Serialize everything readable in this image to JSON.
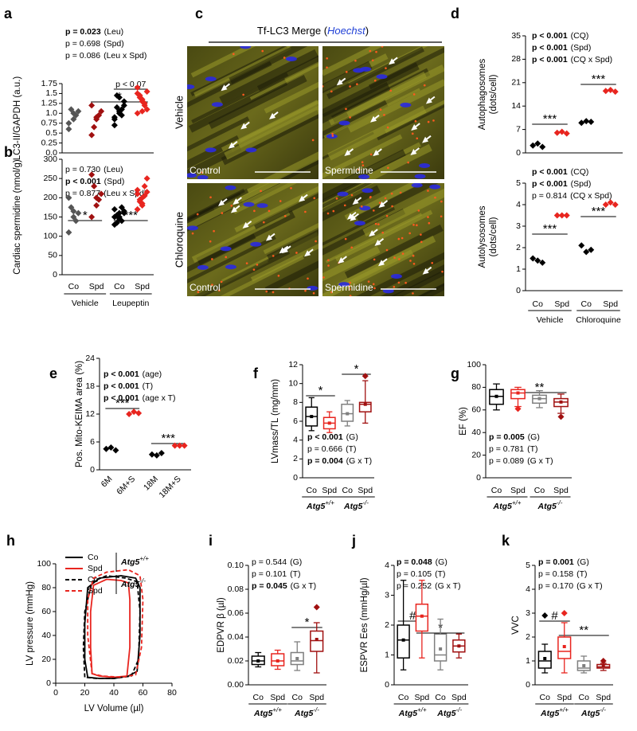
{
  "chart_data": [
    {
      "type": "dot",
      "letter": "a",
      "ylabel": [
        "LC3-II/GAPDH (a.u.)"
      ],
      "ylim": [
        0,
        1.75
      ],
      "yticks": [
        {
          "value": 0,
          "label": "0.0"
        },
        0.25,
        0.5,
        0.75,
        {
          "value": 1,
          "label": "1.0"
        },
        1.25,
        1.5,
        1.75
      ],
      "colors": [
        "#555555",
        "#a01010",
        "#000000",
        "#e8251f"
      ],
      "values": [
        [
          0.75,
          1.0,
          1.05,
          1.1,
          0.95,
          0.6,
          0.85
        ],
        [
          0.45,
          0.85,
          1.05,
          0.65,
          0.95,
          1.2,
          0.9
        ],
        [
          0.7,
          1.05,
          1.2,
          1.45,
          1.1,
          0.9,
          1.0,
          1.3,
          1.15,
          0.95,
          0.85,
          1.4
        ],
        [
          1.0,
          1.3,
          1.55,
          1.45,
          1.2,
          1.65,
          1.35,
          1.1,
          1.4,
          1.25,
          1.5,
          1.05
        ]
      ],
      "stats": [
        {
          "p": "p = 0.023",
          "term": "(Leu)",
          "bold": true
        },
        {
          "p": "p = 0.698",
          "term": "(Spd)",
          "bold": false
        },
        {
          "p": "p = 0.086",
          "term": "(Leu x Spd)",
          "bold": false
        }
      ],
      "significance": [
        "*",
        "p < 0.07"
      ]
    },
    {
      "type": "dot",
      "letter": "b",
      "ylabel": [
        "Cardiac spermidine (nmol/g)"
      ],
      "ylim": [
        0,
        300
      ],
      "yticks": [
        0,
        50,
        100,
        150,
        200,
        250,
        300
      ],
      "categories": [
        "Co",
        "Spd",
        "Co",
        "Spd"
      ],
      "groups": [
        "Vehicle",
        "Leupeptin"
      ],
      "colors": [
        "#555555",
        "#a01010",
        "#000000",
        "#e8251f"
      ],
      "values": [
        [
          110,
          150,
          160,
          175,
          140,
          200,
          165
        ],
        [
          150,
          180,
          210,
          230,
          195,
          260,
          200
        ],
        [
          130,
          150,
          160,
          155,
          140,
          170,
          145,
          165,
          135,
          175,
          150,
          160
        ],
        [
          170,
          200,
          215,
          190,
          230,
          210,
          185,
          250,
          195,
          205,
          220,
          180
        ]
      ],
      "stats": [
        {
          "p": "p = 0.730",
          "term": "(Leu)",
          "bold": false
        },
        {
          "p": "p < 0.001",
          "term": "(Spd)",
          "bold": true
        },
        {
          "p": "p = 0.877",
          "term": "(Leu x Spd)",
          "bold": false
        }
      ],
      "significance": [
        "*",
        "***"
      ]
    },
    {
      "type": "dot",
      "letter": "d",
      "ylabel": [
        "Autophagosomes",
        "(dots/cell)"
      ],
      "ylim": [
        0,
        35
      ],
      "yticks": [
        0,
        7,
        14,
        21,
        28,
        35
      ],
      "colors": [
        "#000000",
        "#e8251f",
        "#000000",
        "#e8251f"
      ],
      "values": [
        [
          2.2,
          2.8,
          1.8
        ],
        [
          6.0,
          6.3,
          5.8
        ],
        [
          9.0,
          9.5,
          9.3
        ],
        [
          18.5,
          18.8,
          18.3
        ]
      ],
      "stats": [
        {
          "p": "p < 0.001",
          "term": "(CQ)",
          "bold": true
        },
        {
          "p": "p < 0.001",
          "term": "(Spd)",
          "bold": true
        },
        {
          "p": "p < 0.001",
          "term": "(CQ x Spd)",
          "bold": true
        }
      ],
      "significance": [
        "***",
        "***"
      ]
    },
    {
      "type": "dot",
      "ylabel": [
        "Autolysosomes",
        "(dots/cell)"
      ],
      "ylim": [
        0,
        5
      ],
      "yticks": [
        0,
        1,
        2,
        3,
        4,
        5
      ],
      "categories": [
        "Co",
        "Spd",
        "Co",
        "Spd"
      ],
      "groups": [
        "Vehicle",
        "Chloroquine"
      ],
      "colors": [
        "#000000",
        "#e8251f",
        "#000000",
        "#e8251f"
      ],
      "values": [
        [
          1.5,
          1.4,
          1.3
        ],
        [
          3.5,
          3.5,
          3.5
        ],
        [
          2.1,
          1.8,
          1.9
        ],
        [
          4.0,
          4.1,
          4.0
        ]
      ],
      "stats": [
        {
          "p": "p < 0.001",
          "term": "(CQ)",
          "bold": true
        },
        {
          "p": "p < 0.001",
          "term": "(Spd)",
          "bold": true
        },
        {
          "p": "p = 0.814",
          "term": "(CQ x Spd)",
          "bold": false
        }
      ],
      "significance": [
        "***",
        "***"
      ]
    },
    {
      "type": "dot",
      "letter": "e",
      "ylabel": [
        "Pos. Mito-KEIMA area (%)"
      ],
      "ylim": [
        0,
        24
      ],
      "yticks": [
        0,
        6,
        12,
        18,
        24
      ],
      "categories": [
        "6M",
        "6M+S",
        "18M",
        "18M+S"
      ],
      "colors": [
        "#000000",
        "#e8251f",
        "#000000",
        "#e8251f"
      ],
      "values": [
        [
          4.5,
          4.8,
          4.2
        ],
        [
          12.0,
          12.5,
          12.2
        ],
        [
          3.3,
          3.1,
          3.6
        ],
        [
          5.2,
          5.2,
          5.2
        ]
      ],
      "stats": [
        {
          "p": "p < 0.001",
          "term": "(age)",
          "bold": true
        },
        {
          "p": "p < 0.001",
          "term": "(T)",
          "bold": true
        },
        {
          "p": "p < 0.001",
          "term": "(age x T)",
          "bold": true
        }
      ],
      "significance": [
        "***",
        "***"
      ]
    },
    {
      "type": "box",
      "letter": "f",
      "ylabel": [
        "LVmass/TL (mg/mm)"
      ],
      "ylim": [
        0,
        12
      ],
      "yticks": [
        0,
        2,
        4,
        6,
        8,
        10,
        12
      ],
      "categories": [
        "Co",
        "Spd",
        "Co",
        "Spd"
      ],
      "groups": [
        {
          "gene": "Atg5",
          "genotype": "+/+"
        },
        {
          "gene": "Atg5",
          "genotype": "-/-"
        }
      ],
      "colors": [
        "#000000",
        "#e8251f",
        "#7f7f7f",
        "#a01010"
      ],
      "boxes": [
        {
          "min": 5.0,
          "q1": 5.5,
          "median": 6.5,
          "q3": 7.5,
          "max": 8.5,
          "mean": 6.5,
          "outliers": []
        },
        {
          "min": 4.8,
          "q1": 5.2,
          "median": 5.8,
          "q3": 6.4,
          "max": 7.0,
          "mean": 5.8,
          "outliers": []
        },
        {
          "min": 5.5,
          "q1": 6.0,
          "median": 6.8,
          "q3": 7.8,
          "max": 8.2,
          "mean": 6.8,
          "outliers": []
        },
        {
          "min": 5.8,
          "q1": 7.0,
          "median": 7.8,
          "q3": 8.0,
          "max": 10.3,
          "mean": 7.8,
          "outliers": [
            10.8
          ]
        }
      ],
      "stats": [
        {
          "p": "p < 0.001",
          "term": "(G)",
          "bold": true
        },
        {
          "p": "p = 0.666",
          "term": "(T)",
          "bold": false
        },
        {
          "p": "p = 0.004",
          "term": "(G x T)",
          "bold": true
        }
      ],
      "significance": [
        "*",
        "*"
      ]
    },
    {
      "type": "box",
      "letter": "g",
      "ylabel": [
        "EF (%)"
      ],
      "ylim": [
        0,
        100
      ],
      "yticks": [
        0,
        20,
        40,
        60,
        80,
        100
      ],
      "categories": [
        "Co",
        "Spd",
        "Co",
        "Spd"
      ],
      "groups": [
        {
          "gene": "Atg5",
          "genotype": "+/+"
        },
        {
          "gene": "Atg5",
          "genotype": "-/-"
        }
      ],
      "colors": [
        "#000000",
        "#e8251f",
        "#7f7f7f",
        "#a01010"
      ],
      "boxes": [
        {
          "min": 60,
          "q1": 65,
          "median": 72,
          "q3": 78,
          "max": 83,
          "mean": 72,
          "outliers": []
        },
        {
          "min": 63,
          "q1": 70,
          "median": 75,
          "q3": 78,
          "max": 80,
          "mean": 75,
          "outliers": [
            61
          ]
        },
        {
          "min": 62,
          "q1": 66,
          "median": 70,
          "q3": 73,
          "max": 77,
          "mean": 70,
          "outliers": []
        },
        {
          "min": 57,
          "q1": 63,
          "median": 67,
          "q3": 70,
          "max": 74,
          "mean": 67,
          "outliers": [
            54
          ]
        }
      ],
      "stats": [
        {
          "p": "p = 0.005",
          "term": "(G)",
          "bold": true
        },
        {
          "p": "p = 0.781",
          "term": "(T)",
          "bold": false
        },
        {
          "p": "p = 0.089",
          "term": "(G x T)",
          "bold": false
        }
      ],
      "significance": [
        "**"
      ]
    },
    {
      "type": "line",
      "letter": "h",
      "xlabel": "LV Volume (µl)",
      "ylabel": [
        "LV pressure (mmHg)"
      ],
      "xlim": [
        0,
        80
      ],
      "xticks": [
        0,
        20,
        40,
        60,
        80
      ],
      "ylim": [
        0,
        100
      ],
      "yticks": [
        0,
        20,
        40,
        60,
        80,
        100
      ],
      "legend_groups": [
        {
          "gene": "Atg5",
          "genotype": "+/+"
        },
        {
          "gene": "Atg5",
          "genotype": "-/-"
        }
      ],
      "series": [
        {
          "name": "Co",
          "color": "#000000",
          "dashed": false,
          "x": [
            22,
            20,
            20,
            22,
            30,
            45,
            55,
            58,
            58,
            56,
            50,
            40,
            30,
            22
          ],
          "y": [
            5,
            20,
            50,
            80,
            88,
            90,
            88,
            80,
            40,
            10,
            6,
            4,
            4,
            5
          ]
        },
        {
          "name": "Spd",
          "color": "#e8251f",
          "dashed": false,
          "x": [
            25,
            24,
            24,
            26,
            35,
            45,
            50,
            51,
            51,
            49,
            40,
            30,
            25
          ],
          "y": [
            8,
            30,
            60,
            82,
            87,
            86,
            84,
            70,
            30,
            6,
            5,
            6,
            8
          ]
        },
        {
          "name": "Co",
          "color": "#000000",
          "dashed": true,
          "x": [
            20,
            19,
            20,
            25,
            35,
            48,
            56,
            58,
            57,
            52,
            40,
            28,
            20
          ],
          "y": [
            5,
            30,
            60,
            85,
            90,
            88,
            85,
            60,
            20,
            6,
            4,
            4,
            5
          ]
        },
        {
          "name": "Spd",
          "color": "#e8251f",
          "dashed": true,
          "x": [
            25,
            22,
            22,
            26,
            35,
            50,
            58,
            60,
            59,
            55,
            45,
            32,
            25
          ],
          "y": [
            8,
            40,
            70,
            88,
            93,
            95,
            90,
            70,
            30,
            7,
            5,
            6,
            8
          ]
        }
      ]
    },
    {
      "type": "box",
      "letter": "i",
      "ylabel": [
        "EDPVR β (µl)"
      ],
      "ylim": [
        0,
        0.1
      ],
      "yticks": [
        {
          "value": 0,
          "label": "0.00"
        },
        0.02,
        0.04,
        0.06,
        0.08,
        {
          "value": 0.1,
          "label": "0.10"
        }
      ],
      "categories": [
        "Co",
        "Spd",
        "Co",
        "Spd"
      ],
      "groups": [
        {
          "gene": "Atg5",
          "genotype": "+/+"
        },
        {
          "gene": "Atg5",
          "genotype": "-/-"
        }
      ],
      "colors": [
        "#000000",
        "#e8251f",
        "#7f7f7f",
        "#a01010"
      ],
      "boxes": [
        {
          "min": 0.015,
          "q1": 0.017,
          "median": 0.02,
          "q3": 0.024,
          "max": 0.027,
          "mean": 0.02,
          "outliers": []
        },
        {
          "min": 0.013,
          "q1": 0.016,
          "median": 0.02,
          "q3": 0.026,
          "max": 0.029,
          "mean": 0.02,
          "outliers": []
        },
        {
          "min": 0.012,
          "q1": 0.017,
          "median": 0.02,
          "q3": 0.027,
          "max": 0.036,
          "mean": 0.022,
          "outliers": []
        },
        {
          "min": 0.01,
          "q1": 0.028,
          "median": 0.037,
          "q3": 0.045,
          "max": 0.052,
          "mean": 0.038,
          "outliers": [
            0.065
          ]
        }
      ],
      "stats": [
        {
          "p": "p = 0.544",
          "term": "(G)",
          "bold": false
        },
        {
          "p": "p = 0.101",
          "term": "(T)",
          "bold": false
        },
        {
          "p": "p = 0.045",
          "term": "(G x T)",
          "bold": true
        }
      ],
      "significance": [
        "*"
      ]
    },
    {
      "type": "box",
      "letter": "j",
      "ylabel": [
        "ESPVR Ees (mmHg/µl)"
      ],
      "ylim": [
        0,
        4
      ],
      "yticks": [
        0,
        1,
        2,
        3,
        4
      ],
      "categories": [
        "Co",
        "Spd",
        "Co",
        "Spd"
      ],
      "groups": [
        {
          "gene": "Atg5",
          "genotype": "+/+"
        },
        {
          "gene": "Atg5",
          "genotype": "-/-"
        }
      ],
      "colors": [
        "#000000",
        "#e8251f",
        "#7f7f7f",
        "#a01010"
      ],
      "boxes": [
        {
          "min": 0.5,
          "q1": 0.9,
          "median": 1.5,
          "q3": 2.0,
          "max": 3.5,
          "mean": 1.5,
          "outliers": []
        },
        {
          "min": 0.9,
          "q1": 1.8,
          "median": 2.3,
          "q3": 2.7,
          "max": 3.5,
          "mean": 2.3,
          "outliers": []
        },
        {
          "min": 0.5,
          "q1": 0.8,
          "median": 1.0,
          "q3": 1.7,
          "max": 2.2,
          "mean": 1.2,
          "outliers": []
        },
        {
          "min": 0.9,
          "q1": 1.1,
          "median": 1.3,
          "q3": 1.5,
          "max": 1.7,
          "mean": 1.3,
          "outliers": []
        }
      ],
      "stats": [
        {
          "p": "p = 0.048",
          "term": "(G)",
          "bold": true
        },
        {
          "p": "p = 0.105",
          "term": "(T)",
          "bold": false
        },
        {
          "p": "p = 0.252",
          "term": "(G x T)",
          "bold": false
        }
      ],
      "significance": [
        "#",
        "*"
      ]
    },
    {
      "type": "box",
      "letter": "k",
      "ylabel": [
        "VVC"
      ],
      "ylim": [
        0,
        5
      ],
      "yticks": [
        0,
        1,
        2,
        3,
        4,
        5
      ],
      "categories": [
        "Co",
        "Spd",
        "Co",
        "Spd"
      ],
      "groups": [
        {
          "gene": "Atg5",
          "genotype": "+/+"
        },
        {
          "gene": "Atg5",
          "genotype": "-/-"
        }
      ],
      "colors": [
        "#000000",
        "#e8251f",
        "#7f7f7f",
        "#a01010"
      ],
      "boxes": [
        {
          "min": 0.5,
          "q1": 0.7,
          "median": 1.0,
          "q3": 1.4,
          "max": 1.7,
          "mean": 1.1,
          "outliers": [
            2.9
          ]
        },
        {
          "min": 0.5,
          "q1": 1.1,
          "median": 1.4,
          "q3": 2.0,
          "max": 2.6,
          "mean": 1.6,
          "outliers": [
            3.0
          ]
        },
        {
          "min": 0.5,
          "q1": 0.6,
          "median": 0.7,
          "q3": 1.0,
          "max": 1.2,
          "mean": 0.8,
          "outliers": []
        },
        {
          "min": 0.6,
          "q1": 0.7,
          "median": 0.75,
          "q3": 0.85,
          "max": 0.9,
          "mean": 0.8,
          "outliers": [
            1.0
          ]
        }
      ],
      "stats": [
        {
          "p": "p = 0.001",
          "term": "(G)",
          "bold": true
        },
        {
          "p": "p = 0.158",
          "term": "(T)",
          "bold": false
        },
        {
          "p": "p = 0.170",
          "term": "(G x T)",
          "bold": false
        }
      ],
      "significance": [
        "#",
        "**"
      ]
    }
  ],
  "image_panel": {
    "letter": "c",
    "title_parts": [
      "Tf-LC3 Merge (",
      "Hoechst",
      ")"
    ],
    "row_labels": [
      "Vehicle",
      "Chloroquine"
    ],
    "image_labels": [
      "Control",
      "Spermidine",
      "Control",
      "Spermidine"
    ]
  }
}
